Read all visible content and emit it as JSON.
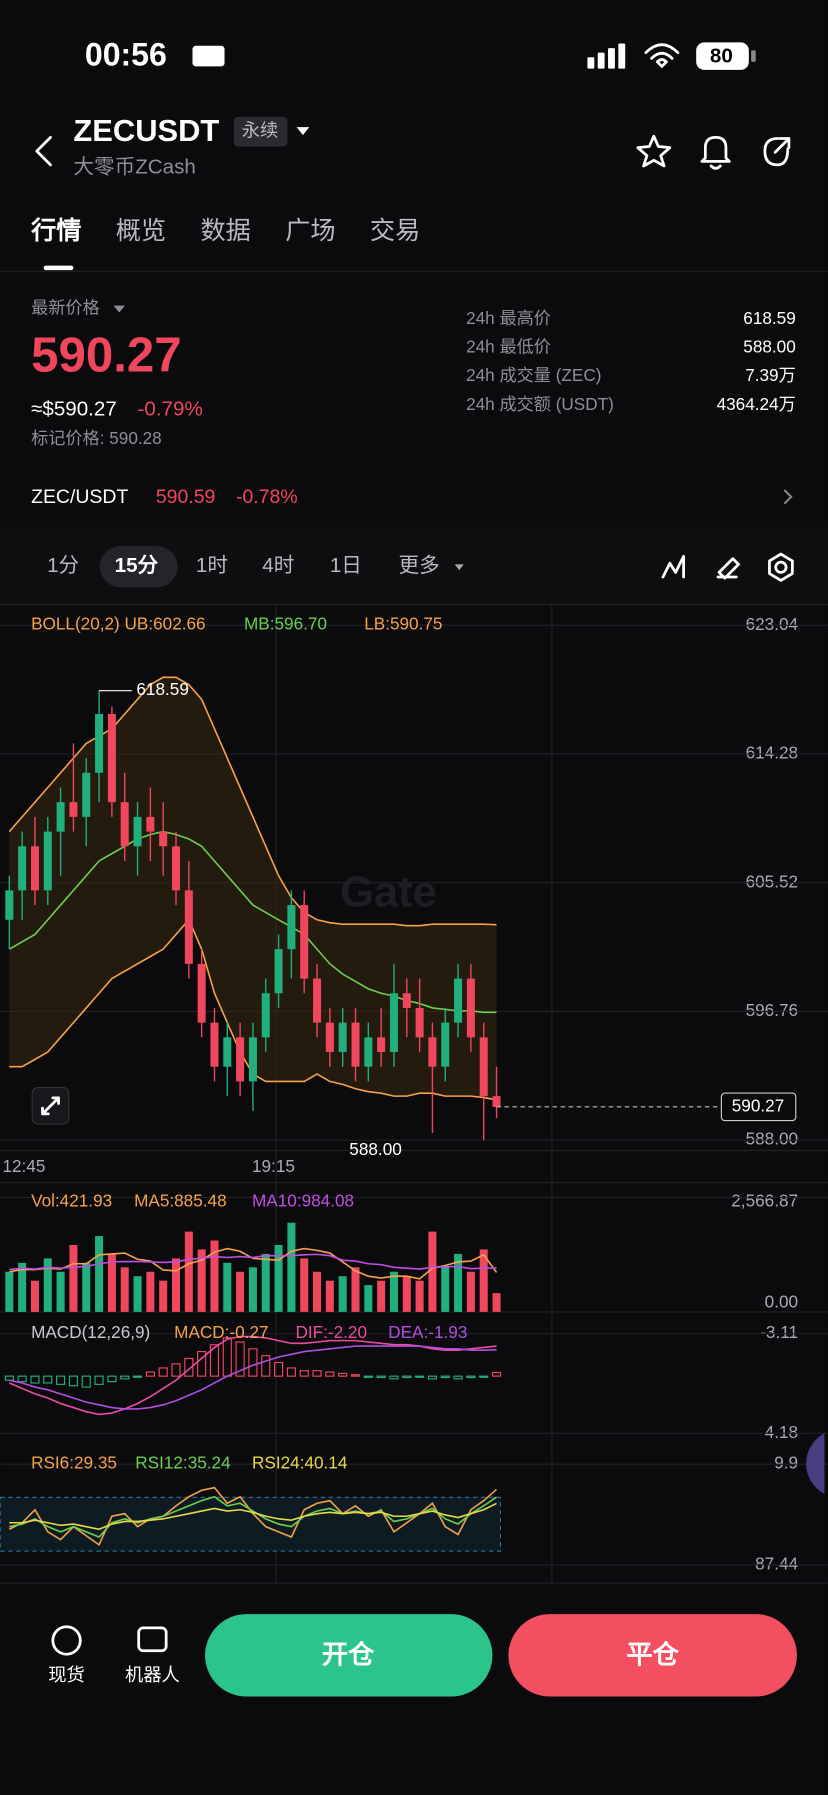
{
  "status": {
    "time": "00:56",
    "battery": "80"
  },
  "header": {
    "symbol": "ZECUSDT",
    "badge": "永续",
    "subtitle": "大零币ZCash"
  },
  "tabs": [
    "行情",
    "概览",
    "数据",
    "广场",
    "交易"
  ],
  "price": {
    "label": "最新价格",
    "last": "590.27",
    "usd": "≈$590.27",
    "change": "-0.79%",
    "mark": "标记价格: 590.28"
  },
  "stats": [
    [
      "24h 最高价",
      "618.59"
    ],
    [
      "24h 最低价",
      "588.00"
    ],
    [
      "24h 成交量 (ZEC)",
      "7.39万"
    ],
    [
      "24h 成交额 (USDT)",
      "4364.24万"
    ]
  ],
  "pair": {
    "name": "ZEC/USDT",
    "price": "590.59",
    "change": "-0.78%"
  },
  "timeframes": [
    "1分",
    "15分",
    "1时",
    "4时",
    "1日",
    "更多"
  ],
  "kline": {
    "boll_label": "BOLL(20,2) UB:602.66",
    "mb_label": "MB:596.70",
    "lb_label": "LB:590.75",
    "high_label": "618.59",
    "low_label": "588.00",
    "last_label": "590.27",
    "times": [
      "12:45",
      "19:15"
    ],
    "ylim": [
      587.3,
      624.3
    ],
    "yticks": [
      623.04,
      614.28,
      605.52,
      596.76,
      {
        "value": 588,
        "label": "588.00"
      }
    ],
    "candles": [
      [
        603,
        606,
        601,
        605
      ],
      [
        605,
        609,
        603,
        608
      ],
      [
        608,
        610,
        604,
        605
      ],
      [
        605,
        610,
        604,
        609
      ],
      [
        609,
        612,
        606,
        611
      ],
      [
        611,
        615,
        609,
        610
      ],
      [
        610,
        614,
        608,
        613
      ],
      [
        613,
        618.59,
        611,
        617
      ],
      [
        617,
        617.5,
        610,
        611
      ],
      [
        611,
        613,
        607,
        608
      ],
      [
        608,
        611,
        606,
        610
      ],
      [
        610,
        612,
        607,
        609
      ],
      [
        609,
        611,
        606,
        608
      ],
      [
        608,
        609,
        604,
        605
      ],
      [
        605,
        607,
        599,
        600
      ],
      [
        600,
        601,
        595,
        596
      ],
      [
        596,
        597,
        592,
        593
      ],
      [
        593,
        596,
        591,
        595
      ],
      [
        595,
        596,
        591,
        592
      ],
      [
        592,
        596,
        590,
        595
      ],
      [
        595,
        599,
        594,
        598
      ],
      [
        598,
        602,
        597,
        601
      ],
      [
        601,
        605,
        599,
        604
      ],
      [
        604,
        605,
        598,
        599
      ],
      [
        599,
        600,
        595,
        596
      ],
      [
        596,
        597,
        593,
        594
      ],
      [
        594,
        597,
        593,
        596
      ],
      [
        596,
        597,
        592,
        593
      ],
      [
        593,
        596,
        592,
        595
      ],
      [
        595,
        597,
        593,
        594
      ],
      [
        594,
        600,
        593,
        598
      ],
      [
        598,
        599,
        595,
        597
      ],
      [
        597,
        599,
        594,
        595
      ],
      [
        595,
        596,
        588.5,
        593
      ],
      [
        593,
        597,
        592,
        596
      ],
      [
        596,
        600,
        595,
        599
      ],
      [
        599,
        600,
        594,
        595
      ],
      [
        595,
        596,
        588,
        591
      ],
      [
        591,
        593,
        589.5,
        590.27
      ]
    ],
    "ub": [
      609,
      610,
      611,
      612,
      613,
      614,
      615,
      615.5,
      616,
      617,
      618,
      619,
      619.5,
      619.5,
      619,
      618,
      616,
      614,
      612,
      610,
      608,
      606,
      604.5,
      603.5,
      603,
      602.8,
      602.7,
      602.7,
      602.7,
      602.7,
      602.7,
      602.6,
      602.6,
      602.7,
      602.7,
      602.7,
      602.7,
      602.7,
      602.66
    ],
    "mb": [
      601,
      601.5,
      602,
      603,
      604,
      605,
      606,
      607,
      607.5,
      608,
      608.5,
      608.8,
      609,
      608.8,
      608.5,
      608,
      607,
      606,
      605,
      604,
      603.5,
      603,
      602.5,
      602,
      601,
      600,
      599.3,
      598.8,
      598.3,
      598,
      597.8,
      597.5,
      597.3,
      597,
      596.9,
      596.8,
      596.8,
      596.7,
      596.7
    ],
    "lb": [
      593,
      593,
      593.5,
      594,
      595,
      596,
      597,
      598,
      599,
      599.5,
      600,
      600.5,
      601,
      602,
      603,
      601,
      598,
      596,
      594,
      592.5,
      592,
      592,
      592,
      592,
      592.5,
      592,
      591.8,
      591.5,
      591.3,
      591.2,
      591,
      591,
      591.2,
      591.2,
      591,
      591,
      591,
      590.9,
      590.75
    ]
  },
  "volume": {
    "vol_label": "Vol:421.93",
    "ma5_label": "MA5:885.48",
    "ma10_label": "MA10:984.08",
    "ylim": [
      0,
      2566.87
    ],
    "yticks": [
      {
        "value": 2566.87,
        "label": "2,566.87"
      },
      {
        "value": 0,
        "label": "0.00"
      }
    ],
    "values": [
      900,
      1100,
      700,
      1200,
      900,
      1500,
      1100,
      1700,
      1300,
      1000,
      800,
      900,
      700,
      1200,
      1800,
      1400,
      1600,
      1100,
      900,
      1000,
      1300,
      1500,
      2000,
      1200,
      900,
      700,
      800,
      1000,
      600,
      700,
      900,
      800,
      700,
      1800,
      1000,
      1300,
      900,
      1400,
      421.93
    ],
    "ma5": [
      900,
      950,
      950,
      980,
      960,
      1080,
      1080,
      1280,
      1300,
      1320,
      1180,
      1140,
      940,
      920,
      1080,
      1160,
      1340,
      1420,
      1360,
      1200,
      1180,
      1160,
      1360,
      1420,
      1380,
      1320,
      1120,
      920,
      800,
      760,
      800,
      800,
      740,
      980,
      1040,
      1120,
      1140,
      1280,
      885.48
    ],
    "ma10": [
      950,
      980,
      960,
      1000,
      980,
      1000,
      1020,
      1080,
      1120,
      1130,
      1130,
      1120,
      1110,
      1120,
      1180,
      1200,
      1240,
      1220,
      1240,
      1220,
      1260,
      1260,
      1260,
      1280,
      1290,
      1260,
      1160,
      1140,
      1080,
      1060,
      1000,
      980,
      960,
      1000,
      1010,
      1020,
      970,
      980,
      984.08
    ]
  },
  "macd": {
    "title": "MACD(12,26,9)",
    "macd_label": "MACD:-0.27",
    "dif_label": "DIF:-2.20",
    "dea_label": "DEA:-1.93",
    "ylim": [
      -3.11,
      4.18
    ],
    "yticks": [
      4.18,
      -3.11
    ],
    "hist": [
      0.3,
      0.4,
      0.5,
      0.5,
      0.6,
      0.7,
      0.8,
      0.6,
      0.4,
      0.2,
      0,
      -0.3,
      -0.6,
      -0.9,
      -1.3,
      -1.8,
      -2.3,
      -2.8,
      -2.5,
      -2.0,
      -1.5,
      -1.0,
      -0.6,
      -0.4,
      -0.4,
      -0.3,
      -0.2,
      -0.1,
      0,
      0.1,
      0.2,
      0.1,
      0,
      0.2,
      0.1,
      0.2,
      0.1,
      0,
      -0.27
    ],
    "dif": [
      0.5,
      0.9,
      1.3,
      1.6,
      2.0,
      2.3,
      2.6,
      2.8,
      2.7,
      2.4,
      2.0,
      1.5,
      0.9,
      0.3,
      -0.5,
      -1.3,
      -2.1,
      -2.7,
      -2.9,
      -2.9,
      -2.8,
      -2.6,
      -2.4,
      -2.4,
      -2.5,
      -2.6,
      -2.6,
      -2.6,
      -2.5,
      -2.4,
      -2.3,
      -2.3,
      -2.2,
      -2.0,
      -1.9,
      -1.9,
      -2.0,
      -2.1,
      -2.2
    ],
    "dea": [
      0.3,
      0.5,
      0.8,
      1.0,
      1.3,
      1.6,
      1.9,
      2.1,
      2.3,
      2.4,
      2.4,
      2.3,
      2.1,
      1.8,
      1.4,
      1.0,
      0.5,
      0,
      -0.4,
      -0.8,
      -1.1,
      -1.4,
      -1.6,
      -1.8,
      -1.9,
      -2.0,
      -2.1,
      -2.2,
      -2.2,
      -2.2,
      -2.2,
      -2.2,
      -2.2,
      -2.1,
      -2.0,
      -2.0,
      -1.9,
      -1.9,
      -1.93
    ]
  },
  "rsi": {
    "rsi6_label": "RSI6:29.35",
    "rsi12_label": "RSI12:35.24",
    "rsi24_label": "RSI24:40.14",
    "ylim": [
      9.9,
      87.44
    ],
    "yticks": [
      87.44,
      9.9
    ],
    "rsi6": [
      60,
      55,
      45,
      62,
      68,
      58,
      65,
      72,
      50,
      48,
      58,
      52,
      50,
      42,
      35,
      30,
      28,
      40,
      35,
      48,
      58,
      62,
      66,
      45,
      40,
      38,
      48,
      42,
      50,
      45,
      62,
      55,
      48,
      40,
      58,
      64,
      45,
      38,
      29.35
    ],
    "rsi12": [
      58,
      56,
      52,
      58,
      62,
      58,
      62,
      66,
      55,
      52,
      55,
      52,
      50,
      46,
      42,
      38,
      35,
      42,
      40,
      46,
      52,
      56,
      58,
      50,
      46,
      44,
      48,
      46,
      48,
      46,
      54,
      52,
      48,
      44,
      52,
      56,
      48,
      42,
      35.24
    ],
    "rsi24": [
      55,
      55,
      53,
      55,
      57,
      56,
      58,
      60,
      56,
      54,
      54,
      53,
      52,
      50,
      48,
      46,
      44,
      46,
      45,
      47,
      50,
      52,
      53,
      50,
      48,
      47,
      48,
      47,
      48,
      47,
      50,
      50,
      48,
      46,
      49,
      51,
      48,
      45,
      40.14
    ]
  },
  "bottom": {
    "spot": "现货",
    "bot": "机器人",
    "open": "开仓",
    "close": "平仓"
  }
}
